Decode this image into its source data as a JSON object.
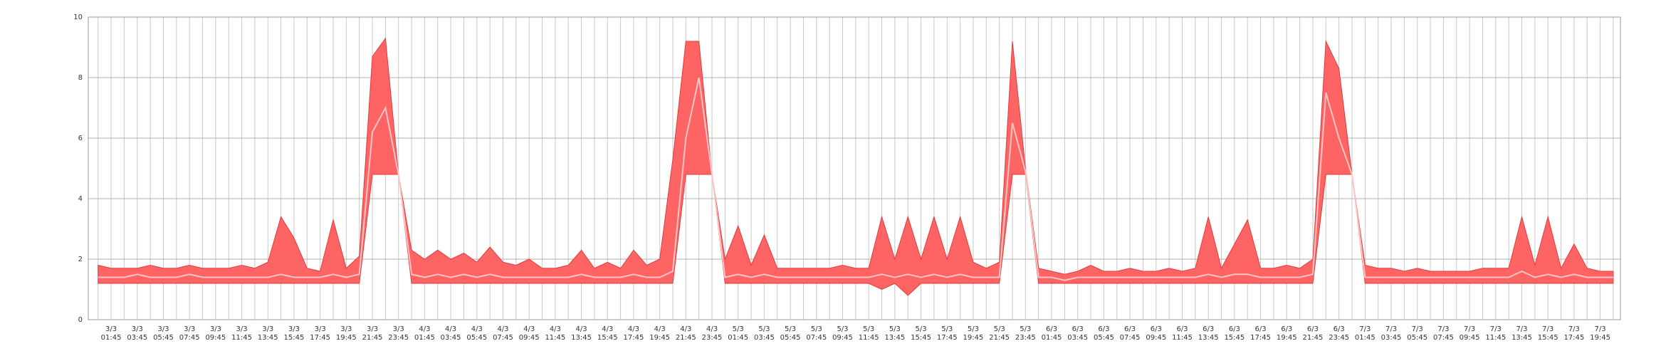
{
  "chart_data": {
    "type": "area",
    "categories": [
      null,
      "3/3 01:45",
      null,
      "3/3 03:45",
      null,
      "3/3 05:45",
      null,
      "3/3 07:45",
      null,
      "3/3 09:45",
      null,
      "3/3 11:45",
      null,
      "3/3 13:45",
      null,
      "3/3 15:45",
      null,
      "3/3 17:45",
      null,
      "3/3 19:45",
      null,
      "3/3 21:45",
      null,
      "3/3 23:45",
      null,
      "4/3 01:45",
      null,
      "4/3 03:45",
      null,
      "4/3 05:45",
      null,
      "4/3 07:45",
      null,
      "4/3 09:45",
      null,
      "4/3 11:45",
      null,
      "4/3 13:45",
      null,
      "4/3 15:45",
      null,
      "4/3 17:45",
      null,
      "4/3 19:45",
      null,
      "4/3 21:45",
      null,
      "4/3 23:45",
      null,
      "5/3 01:45",
      null,
      "5/3 03:45",
      null,
      "5/3 05:45",
      null,
      "5/3 07:45",
      null,
      "5/3 09:45",
      null,
      "5/3 11:45",
      null,
      "5/3 13:45",
      null,
      "5/3 15:45",
      null,
      "5/3 17:45",
      null,
      "5/3 19:45",
      null,
      "5/3 21:45",
      null,
      "5/3 23:45",
      null,
      "6/3 01:45",
      null,
      "6/3 03:45",
      null,
      "6/3 05:45",
      null,
      "6/3 07:45",
      null,
      "6/3 09:45",
      null,
      "6/3 11:45",
      null,
      "6/3 13:45",
      null,
      "6/3 15:45",
      null,
      "6/3 17:45",
      null,
      "6/3 19:45",
      null,
      "6/3 21:45",
      null,
      "6/3 23:45",
      null,
      "7/3 01:45",
      null,
      "7/3 03:45",
      null,
      "7/3 05:45",
      null,
      "7/3 07:45",
      null,
      "7/3 09:45",
      null,
      "7/3 11:45",
      null,
      "7/3 13:45",
      null,
      "7/3 15:45",
      null,
      "7/3 17:45",
      null,
      "7/3 19:45",
      null
    ],
    "series": [
      {
        "color": "#ff6464",
        "values": [
          1.8,
          1.7,
          1.7,
          1.7,
          1.8,
          1.7,
          1.7,
          1.8,
          1.7,
          1.7,
          1.7,
          1.8,
          1.7,
          1.9,
          3.4,
          2.7,
          1.7,
          1.6,
          3.3,
          1.7,
          2.1,
          8.7,
          9.3,
          4.8,
          2.3,
          2.0,
          2.3,
          2.0,
          2.2,
          1.9,
          2.4,
          1.9,
          1.8,
          2.0,
          1.7,
          1.7,
          1.8,
          2.3,
          1.7,
          1.9,
          1.7,
          2.3,
          1.8,
          2.0,
          5.3,
          9.2,
          9.2,
          4.8,
          2.0,
          3.1,
          1.8,
          2.8,
          1.7,
          1.7,
          1.7,
          1.7,
          1.7,
          1.8,
          1.7,
          1.7,
          3.4,
          2.0,
          3.4,
          2.0,
          3.4,
          2.0,
          3.4,
          1.9,
          1.7,
          1.9,
          9.2,
          5.0,
          1.7,
          1.6,
          1.5,
          1.6,
          1.8,
          1.6,
          1.6,
          1.7,
          1.6,
          1.6,
          1.7,
          1.6,
          1.7,
          3.4,
          1.7,
          2.5,
          3.3,
          1.7,
          1.7,
          1.8,
          1.7,
          2.0,
          9.2,
          8.3,
          4.8,
          1.8,
          1.7,
          1.7,
          1.6,
          1.7,
          1.6,
          1.6,
          1.6,
          1.6,
          1.7,
          1.7,
          1.7,
          3.4,
          1.8,
          3.4,
          1.7,
          2.5,
          1.7,
          1.6,
          1.6
        ]
      },
      {
        "color": "#ff6464",
        "values": [
          1.2,
          1.2,
          1.2,
          1.2,
          1.2,
          1.2,
          1.2,
          1.2,
          1.2,
          1.2,
          1.2,
          1.2,
          1.2,
          1.2,
          1.2,
          1.2,
          1.2,
          1.2,
          1.2,
          1.2,
          1.2,
          4.8,
          4.8,
          4.8,
          1.2,
          1.2,
          1.2,
          1.2,
          1.2,
          1.2,
          1.2,
          1.2,
          1.2,
          1.2,
          1.2,
          1.2,
          1.2,
          1.2,
          1.2,
          1.2,
          1.2,
          1.2,
          1.2,
          1.2,
          1.2,
          4.8,
          4.8,
          4.8,
          1.2,
          1.2,
          1.2,
          1.2,
          1.2,
          1.2,
          1.2,
          1.2,
          1.2,
          1.2,
          1.2,
          1.2,
          1.0,
          1.2,
          0.8,
          1.2,
          1.2,
          1.2,
          1.2,
          1.2,
          1.2,
          1.2,
          4.8,
          4.8,
          1.2,
          1.2,
          1.2,
          1.2,
          1.2,
          1.2,
          1.2,
          1.2,
          1.2,
          1.2,
          1.2,
          1.2,
          1.2,
          1.2,
          1.2,
          1.2,
          1.2,
          1.2,
          1.2,
          1.2,
          1.2,
          1.2,
          4.8,
          4.8,
          4.8,
          1.2,
          1.2,
          1.2,
          1.2,
          1.2,
          1.2,
          1.2,
          1.2,
          1.2,
          1.2,
          1.2,
          1.2,
          1.2,
          1.2,
          1.2,
          1.2,
          1.2,
          1.2,
          1.2,
          1.2
        ]
      },
      {
        "color": "#ffc4c4",
        "values": [
          1.4,
          1.4,
          1.4,
          1.5,
          1.4,
          1.4,
          1.4,
          1.5,
          1.4,
          1.4,
          1.4,
          1.4,
          1.4,
          1.4,
          1.5,
          1.4,
          1.4,
          1.4,
          1.5,
          1.4,
          1.5,
          6.2,
          7.0,
          4.8,
          1.5,
          1.4,
          1.5,
          1.4,
          1.5,
          1.4,
          1.5,
          1.4,
          1.4,
          1.4,
          1.4,
          1.4,
          1.4,
          1.5,
          1.4,
          1.4,
          1.4,
          1.5,
          1.4,
          1.4,
          1.6,
          6.0,
          8.0,
          4.8,
          1.4,
          1.5,
          1.4,
          1.5,
          1.4,
          1.4,
          1.4,
          1.4,
          1.4,
          1.4,
          1.4,
          1.4,
          1.5,
          1.4,
          1.5,
          1.4,
          1.5,
          1.4,
          1.5,
          1.4,
          1.4,
          1.4,
          6.5,
          4.9,
          1.4,
          1.4,
          1.3,
          1.4,
          1.4,
          1.4,
          1.4,
          1.4,
          1.4,
          1.4,
          1.4,
          1.4,
          1.4,
          1.5,
          1.4,
          1.5,
          1.5,
          1.4,
          1.4,
          1.4,
          1.4,
          1.5,
          7.5,
          6.0,
          4.8,
          1.4,
          1.4,
          1.4,
          1.4,
          1.4,
          1.4,
          1.4,
          1.4,
          1.4,
          1.4,
          1.4,
          1.4,
          1.6,
          1.4,
          1.5,
          1.4,
          1.5,
          1.4,
          1.4,
          1.4
        ]
      }
    ],
    "ylim": [
      0,
      10
    ],
    "yticks": [
      0,
      2,
      4,
      6,
      8,
      10
    ],
    "grid": true
  }
}
